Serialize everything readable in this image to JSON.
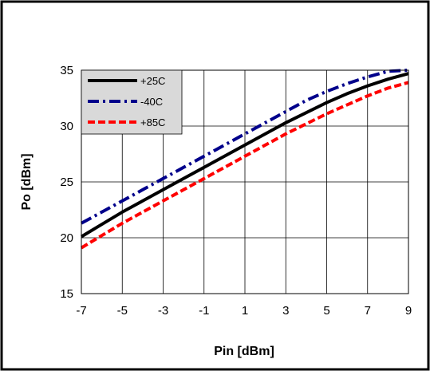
{
  "chart_data": {
    "type": "line",
    "title": "",
    "xlabel": "Pin [dBm]",
    "ylabel": "Po [dBm]",
    "xlim": [
      -7,
      9
    ],
    "ylim": [
      15,
      35
    ],
    "xticks": [
      -7,
      -5,
      -3,
      -1,
      1,
      3,
      5,
      7,
      9
    ],
    "yticks": [
      15,
      20,
      25,
      30,
      35
    ],
    "grid": true,
    "legend_position": "top-left",
    "series": [
      {
        "name": "+25C",
        "color": "#000000",
        "dash": "solid",
        "x": [
          -7,
          -6,
          -5,
          -4,
          -3,
          -2,
          -1,
          0,
          1,
          2,
          3,
          4,
          5,
          6,
          7,
          8,
          9
        ],
        "y": [
          20.1,
          21.2,
          22.3,
          23.3,
          24.3,
          25.3,
          26.3,
          27.3,
          28.3,
          29.3,
          30.3,
          31.2,
          32.1,
          32.9,
          33.6,
          34.2,
          34.7
        ]
      },
      {
        "name": "-40C",
        "color": "#00008B",
        "dash": "dashdot",
        "x": [
          -7,
          -6,
          -5,
          -4,
          -3,
          -2,
          -1,
          0,
          1,
          2,
          3,
          4,
          5,
          6,
          7,
          8,
          9
        ],
        "y": [
          21.3,
          22.3,
          23.3,
          24.3,
          25.3,
          26.3,
          27.3,
          28.3,
          29.3,
          30.3,
          31.3,
          32.3,
          33.1,
          33.8,
          34.4,
          34.9,
          35.3
        ]
      },
      {
        "name": "+85C",
        "color": "#FF0000",
        "dash": "dashed",
        "x": [
          -7,
          -6,
          -5,
          -4,
          -3,
          -2,
          -1,
          0,
          1,
          2,
          3,
          4,
          5,
          6,
          7,
          8,
          9
        ],
        "y": [
          19.1,
          20.2,
          21.3,
          22.3,
          23.3,
          24.3,
          25.3,
          26.3,
          27.3,
          28.3,
          29.3,
          30.2,
          31.1,
          31.9,
          32.7,
          33.4,
          33.9
        ]
      }
    ]
  }
}
